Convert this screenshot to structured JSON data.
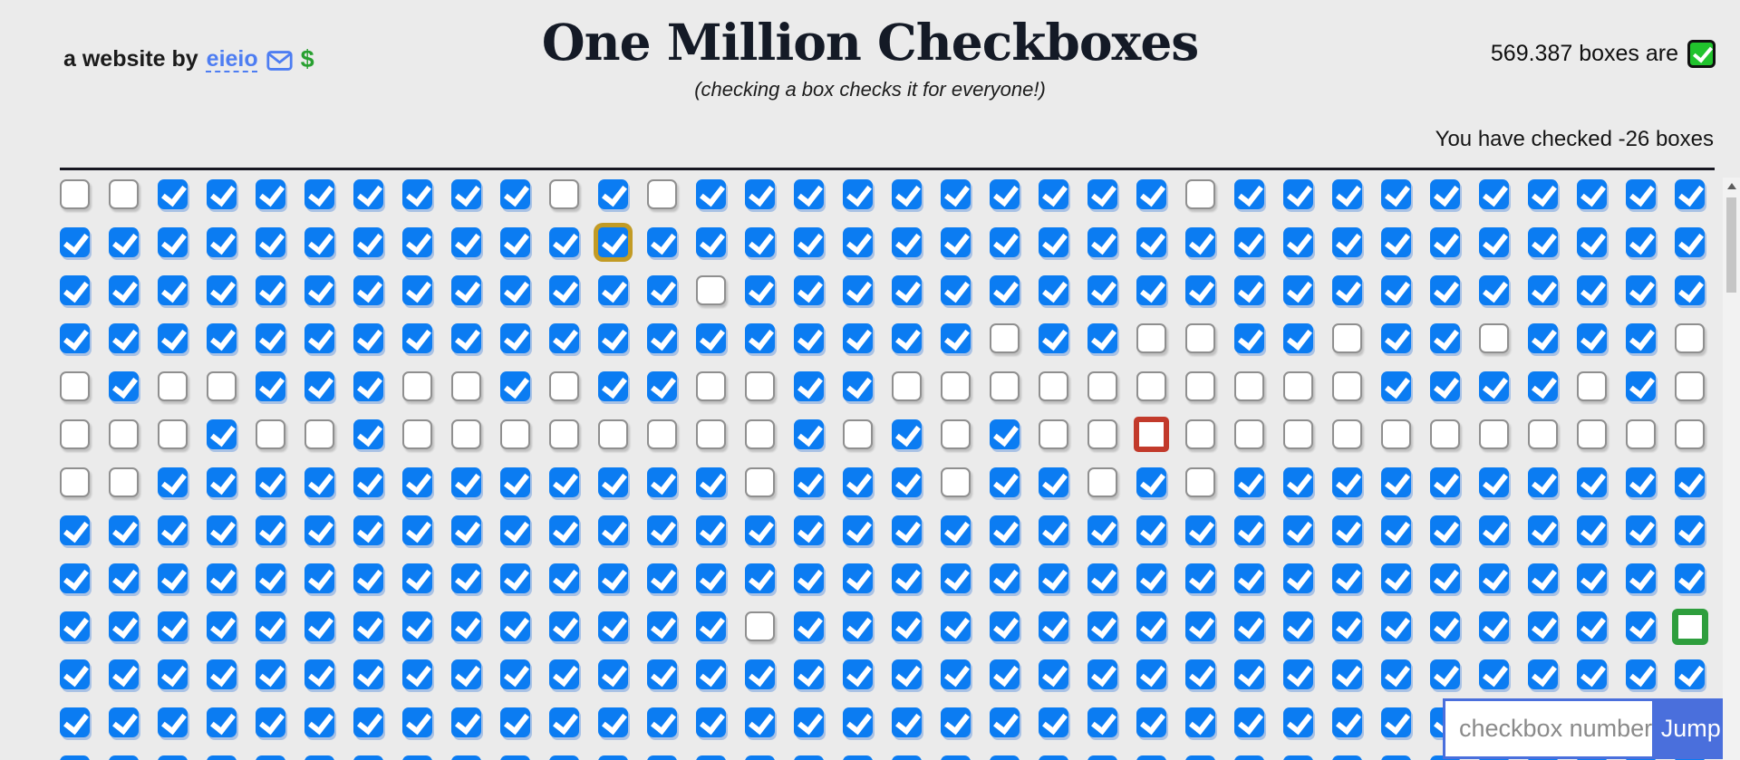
{
  "header": {
    "byline_prefix": "a website by",
    "byline_link": "eieio",
    "dollar": "$",
    "title": "One Million Checkboxes",
    "subtitle": "(checking a box checks it for everyone!)",
    "global_count_text": "569.387 boxes are",
    "session_count_text": "You have checked -26 boxes"
  },
  "jump": {
    "placeholder": "checkbox number",
    "button_label": "Jump!"
  },
  "colors": {
    "page_bg": "#ebebeb",
    "checked_blue": "#0b7cf2",
    "link_blue": "#4d7df2",
    "jump_blue": "#4a6fdc",
    "counter_check_green": "#21c32d",
    "dollar_green": "#28a030",
    "gold_highlight": "#c29b25",
    "red_highlight": "#c23a2b",
    "green_highlight": "#2e9e3d",
    "divider": "#171722"
  },
  "icons": {
    "mail": "envelope-icon",
    "counter_checkbox": "checked-box-icon",
    "scroll_up": "scroll-up-icon"
  },
  "grid": {
    "columns": 34,
    "visible_rows": 13,
    "legend": {
      "1": "checked",
      "0": "unchecked",
      "g": "checked-gold-outline",
      "r": "unchecked-red-outline",
      "G": "unchecked-green-outline"
    },
    "rows": [
      "0011111111010111111111101111111111",
      "11111111111g1111111111111111111111",
      "1111111111111011111111111111111111",
      "1111111111111111111011001101101110",
      "0100111001011001100000000001111010",
      "0001001000000001010100r00000000000",
      "0011111111111101110110101111111111",
      "1111111111111111111111111111111111",
      "1111111111111111111111111111111111",
      "111111111111110111111111111111111G",
      "1111111111111111111111111111111111",
      "1111111111111111111111111111111111",
      "1111111111111111111111111111111111"
    ]
  }
}
